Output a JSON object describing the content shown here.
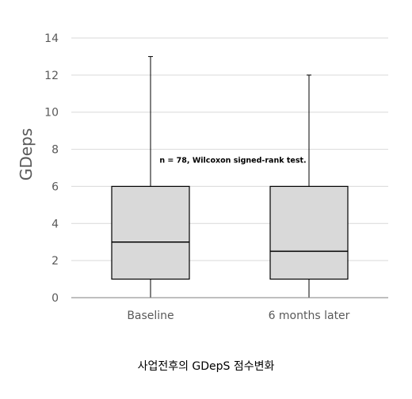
{
  "chart_data": {
    "type": "boxplot",
    "title": "",
    "xlabel": "",
    "ylabel": "GDeps",
    "ylim": [
      0,
      14
    ],
    "yticks": [
      0,
      2,
      4,
      6,
      8,
      10,
      12,
      14
    ],
    "grid": true,
    "categories": [
      "Baseline",
      "6 months later"
    ],
    "boxes": [
      {
        "category": "Baseline",
        "min": 0,
        "q1": 1,
        "median": 3,
        "q3": 6,
        "max": 13
      },
      {
        "category": "6 months later",
        "min": 0,
        "q1": 1,
        "median": 2.5,
        "q3": 6,
        "max": 12
      }
    ],
    "annotation": {
      "text": "n = 78, Wilcoxon signed-rank test.",
      "y": 7.4
    },
    "colors": {
      "box_fill": "#d9d9d9",
      "box_stroke": "#000000",
      "grid": "#d9d9d9",
      "axis": "#7f7f7f"
    }
  },
  "caption": "사업전후의 GDepS 점수변화"
}
